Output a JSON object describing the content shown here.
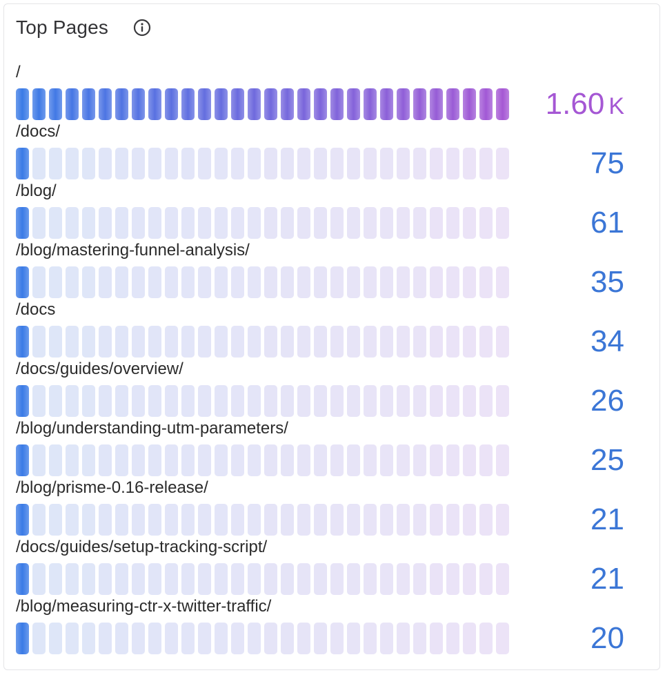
{
  "widget": {
    "title": "Top Pages",
    "info_icon": "info-circle-icon"
  },
  "colors": {
    "filled_start": "#3a7ae6",
    "filled_end": "#a557d4",
    "empty_start": "#dde6f8",
    "empty_end": "#ece3f7",
    "value_blue": "#3b76d6",
    "value_purple": "#a557d4"
  },
  "segments_per_bar": 30,
  "rows": [
    {
      "label": "/",
      "value": "1.60",
      "unit": "K",
      "fill_fraction": 1.0,
      "highlight": true
    },
    {
      "label": "/docs/",
      "value": "75",
      "unit": "",
      "fill_fraction": 0.047,
      "highlight": false
    },
    {
      "label": "/blog/",
      "value": "61",
      "unit": "",
      "fill_fraction": 0.038,
      "highlight": false
    },
    {
      "label": "/blog/mastering-funnel-analysis/",
      "value": "35",
      "unit": "",
      "fill_fraction": 0.022,
      "highlight": false
    },
    {
      "label": "/docs",
      "value": "34",
      "unit": "",
      "fill_fraction": 0.021,
      "highlight": false
    },
    {
      "label": "/docs/guides/overview/",
      "value": "26",
      "unit": "",
      "fill_fraction": 0.016,
      "highlight": false
    },
    {
      "label": "/blog/understanding-utm-parameters/",
      "value": "25",
      "unit": "",
      "fill_fraction": 0.016,
      "highlight": false
    },
    {
      "label": "/blog/prisme-0.16-release/",
      "value": "21",
      "unit": "",
      "fill_fraction": 0.013,
      "highlight": false
    },
    {
      "label": "/docs/guides/setup-tracking-script/",
      "value": "21",
      "unit": "",
      "fill_fraction": 0.013,
      "highlight": false
    },
    {
      "label": "/blog/measuring-ctr-x-twitter-traffic/",
      "value": "20",
      "unit": "",
      "fill_fraction": 0.0125,
      "highlight": false
    }
  ]
}
